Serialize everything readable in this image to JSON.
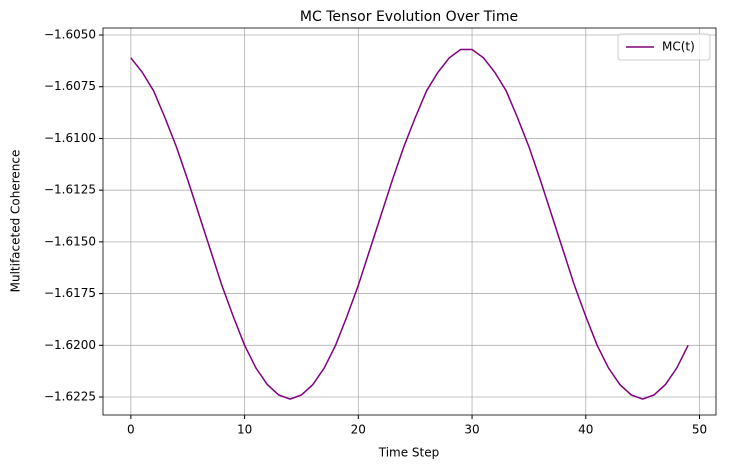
{
  "chart_data": {
    "type": "line",
    "title": "MC Tensor Evolution Over Time",
    "x_label": "Time Step",
    "y_label": "Multifaceted Coherence",
    "x": [
      0,
      1,
      2,
      3,
      4,
      5,
      6,
      7,
      8,
      9,
      10,
      11,
      12,
      13,
      14,
      15,
      16,
      17,
      18,
      19,
      20,
      21,
      22,
      23,
      24,
      25,
      26,
      27,
      28,
      29,
      30,
      31,
      32,
      33,
      34,
      35,
      36,
      37,
      38,
      39,
      40,
      41,
      42,
      43,
      44,
      45,
      46,
      47,
      48,
      49
    ],
    "series": [
      {
        "name": "MC(t)",
        "color": "#800080",
        "values": [
          -1.6061,
          -1.6068,
          -1.6077,
          -1.609,
          -1.6104,
          -1.612,
          -1.6137,
          -1.6154,
          -1.6171,
          -1.6186,
          -1.62,
          -1.6211,
          -1.6219,
          -1.6224,
          -1.6226,
          -1.6224,
          -1.6219,
          -1.6211,
          -1.62,
          -1.6186,
          -1.6171,
          -1.6154,
          -1.6137,
          -1.612,
          -1.6104,
          -1.609,
          -1.6077,
          -1.6068,
          -1.6061,
          -1.6057,
          -1.6057,
          -1.6061,
          -1.6068,
          -1.6077,
          -1.609,
          -1.6104,
          -1.612,
          -1.6137,
          -1.6154,
          -1.6171,
          -1.6186,
          -1.62,
          -1.6211,
          -1.6219,
          -1.6224,
          -1.6226,
          -1.6224,
          -1.6219,
          -1.6211,
          -1.62
        ]
      }
    ],
    "xlim": [
      -2.45,
      51.45
    ],
    "ylim": [
      -1.62337,
      -1.60466
    ],
    "xticks": [
      0,
      10,
      20,
      30,
      40,
      50
    ],
    "yticks": [
      {
        "value": -1.6225,
        "label": "−1.6225"
      },
      {
        "value": -1.62,
        "label": "−1.6200"
      },
      {
        "value": -1.6175,
        "label": "−1.6175"
      },
      {
        "value": -1.615,
        "label": "−1.6150"
      },
      {
        "value": -1.6125,
        "label": "−1.6125"
      },
      {
        "value": -1.61,
        "label": "−1.6100"
      },
      {
        "value": -1.6075,
        "label": "−1.6075"
      },
      {
        "value": -1.605,
        "label": "−1.6050"
      }
    ],
    "grid": true,
    "legend": "upper right"
  }
}
